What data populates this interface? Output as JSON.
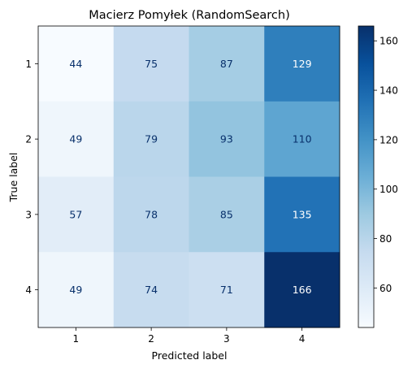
{
  "chart_data": {
    "type": "heatmap",
    "title": "Macierz Pomyłek (RandomSearch)",
    "xlabel": "Predicted label",
    "ylabel": "True label",
    "x_categories": [
      "1",
      "2",
      "3",
      "4"
    ],
    "y_categories": [
      "1",
      "2",
      "3",
      "4"
    ],
    "values": [
      [
        44,
        75,
        87,
        129
      ],
      [
        49,
        79,
        93,
        110
      ],
      [
        57,
        78,
        85,
        135
      ],
      [
        49,
        74,
        71,
        166
      ]
    ],
    "colormap": "Blues",
    "colorbar": {
      "min": 44,
      "max": 166,
      "ticks": [
        60,
        80,
        100,
        120,
        140,
        160
      ]
    }
  }
}
